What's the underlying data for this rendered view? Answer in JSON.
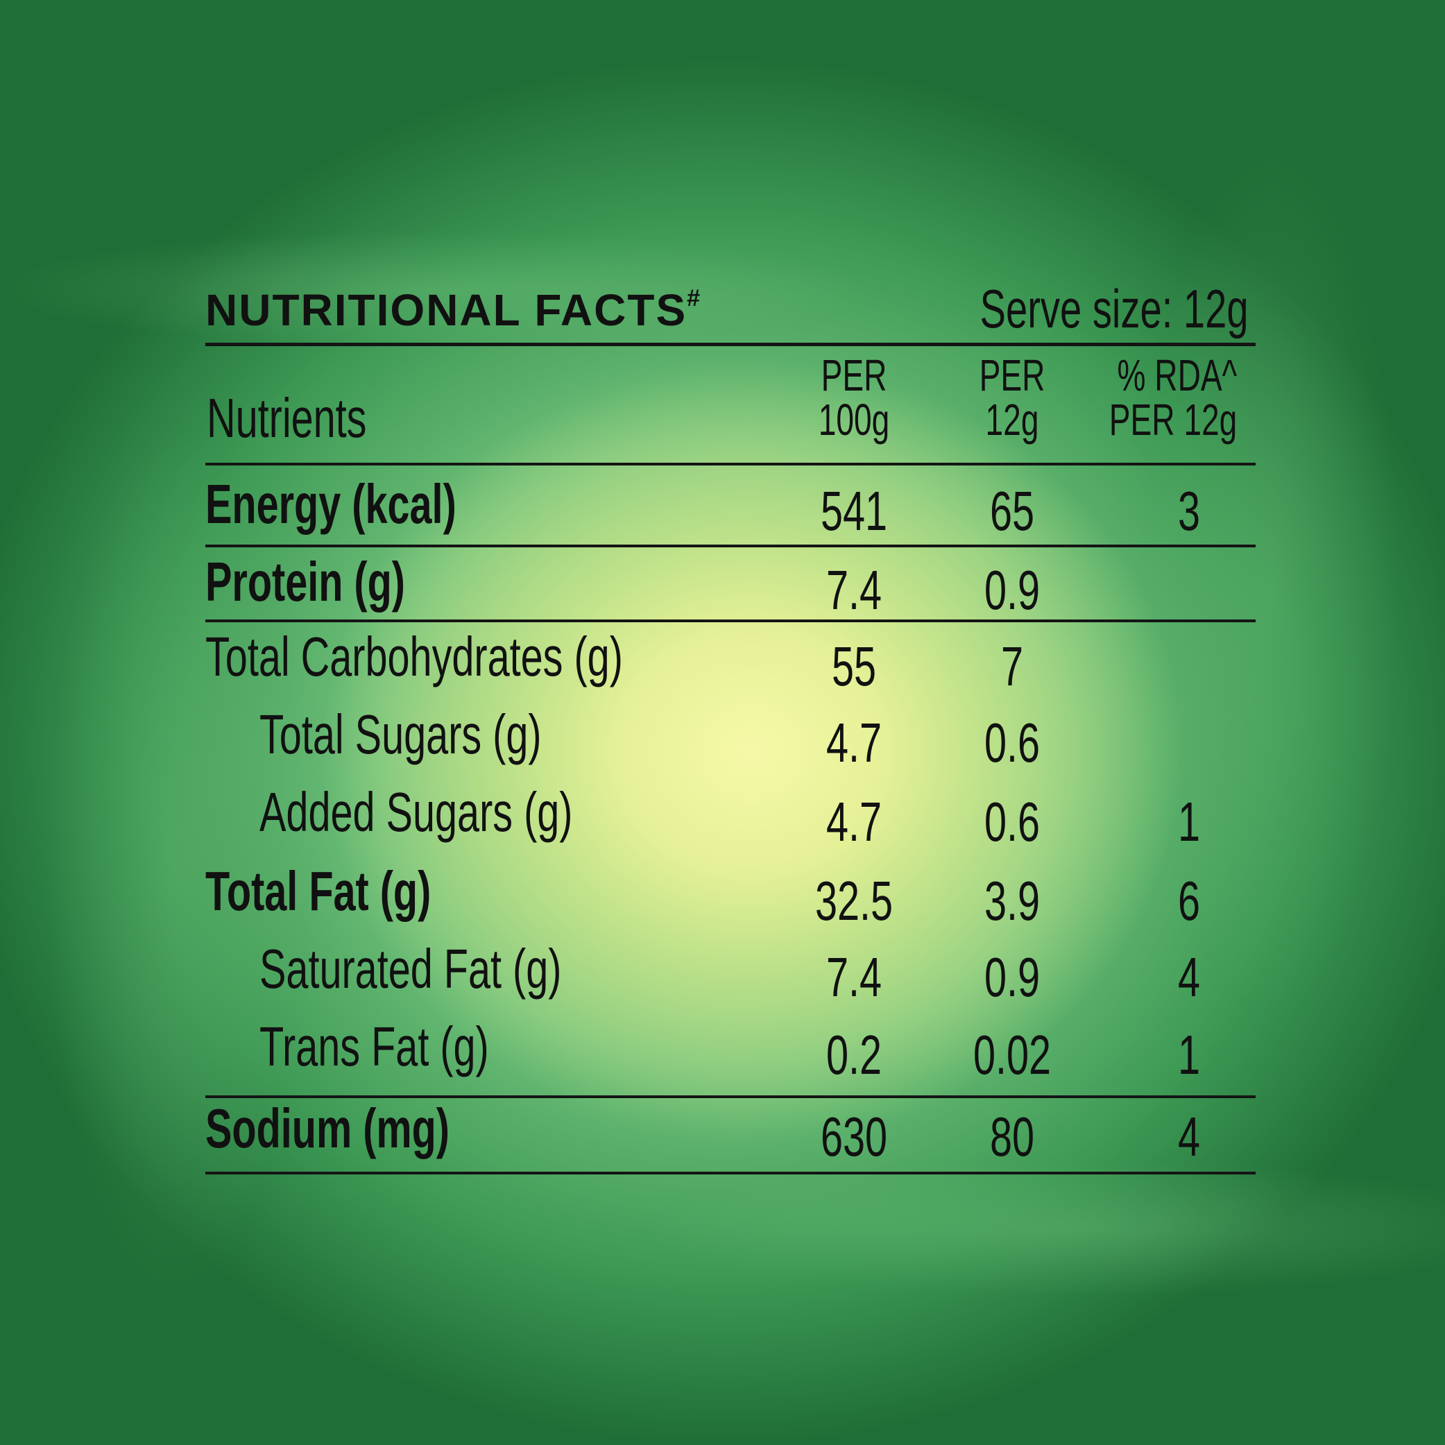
{
  "title": "NUTRITIONAL FACTS",
  "title_mark": "#",
  "serve_size": "Serve size: 12g",
  "headers": {
    "nutrients": "Nutrients",
    "col1_line1": "PER",
    "col1_line2": "100g",
    "col2_line1": "PER",
    "col2_line2": "12g",
    "col3_line1": "% RDA^",
    "col3_line2": "PER 12g"
  },
  "rows": [
    {
      "name": "Energy (kcal)",
      "per100": "541",
      "per12": "65",
      "rda": "3"
    },
    {
      "name": "Protein (g)",
      "per100": "7.4",
      "per12": "0.9",
      "rda": ""
    },
    {
      "name": "Total Carbohydrates (g)",
      "per100": "55",
      "per12": "7",
      "rda": ""
    },
    {
      "name": "Total Sugars (g)",
      "per100": "4.7",
      "per12": "0.6",
      "rda": ""
    },
    {
      "name": "Added Sugars (g)",
      "per100": "4.7",
      "per12": "0.6",
      "rda": "1"
    },
    {
      "name": "Total Fat (g)",
      "per100": "32.5",
      "per12": "3.9",
      "rda": "6"
    },
    {
      "name": "Saturated Fat (g)",
      "per100": "7.4",
      "per12": "0.9",
      "rda": "4"
    },
    {
      "name": "Trans Fat (g)",
      "per100": "0.2",
      "per12": "0.02",
      "rda": "1"
    },
    {
      "name": "Sodium (mg)",
      "per100": "630",
      "per12": "80",
      "rda": "4"
    }
  ],
  "colors": {
    "text": "#111111",
    "background_center": "#f6f9a8",
    "background_edge": "#1f6e37"
  }
}
